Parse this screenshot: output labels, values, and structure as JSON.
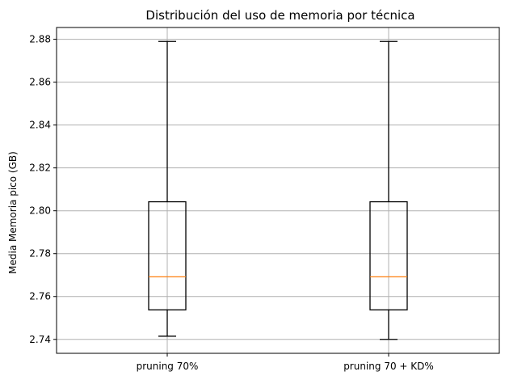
{
  "chart_data": {
    "type": "box",
    "title": "Distribución del uso de memoria por técnica",
    "xlabel": "",
    "ylabel": "Media Memoria pico (GB)",
    "ylim": [
      2.7335,
      2.8855
    ],
    "yticks": [
      2.74,
      2.76,
      2.78,
      2.8,
      2.82,
      2.84,
      2.86,
      2.88
    ],
    "ytick_labels": [
      "2.74",
      "2.76",
      "2.78",
      "2.80",
      "2.82",
      "2.84",
      "2.86",
      "2.88"
    ],
    "categories": [
      "pruning 70%",
      "pruning 70 + KD%"
    ],
    "boxes": [
      {
        "category": "pruning 70%",
        "whisker_low": 2.7415,
        "q1": 2.7538,
        "median": 2.7692,
        "q3": 2.8042,
        "whisker_high": 2.879
      },
      {
        "category": "pruning 70 + KD%",
        "whisker_low": 2.74,
        "q1": 2.7538,
        "median": 2.7692,
        "q3": 2.8042,
        "whisker_high": 2.879
      }
    ],
    "grid": true,
    "colors": {
      "box": "#000000",
      "median": "#ff7f0e",
      "grid": "#b0b0b0"
    }
  }
}
